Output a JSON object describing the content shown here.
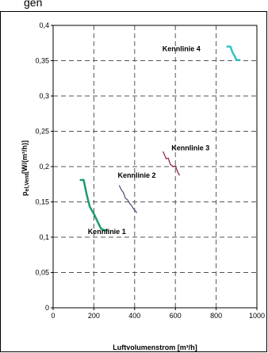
{
  "page": {
    "header_partial": "gen"
  },
  "chart_data": {
    "type": "line",
    "xlabel": "Luftvolumenstrom [m³/h]",
    "ylabel": "pel,Vent [W/(m³/h)]",
    "ylabel_main": "p",
    "ylabel_sub": "el,Vent",
    "ylabel_rest": "[W/(m³/h)]",
    "xlim": [
      0,
      1000
    ],
    "ylim": [
      0,
      0.4
    ],
    "x_ticks": [
      "0",
      "200",
      "400",
      "600",
      "800",
      "1000"
    ],
    "y_ticks": [
      "0",
      "0,05",
      "0,1",
      "0,15",
      "0,2",
      "0,25",
      "0,3",
      "0,35",
      "0,4"
    ],
    "grid": true,
    "series": [
      {
        "name": "Kennlinie 1",
        "color": "#1e9c6a",
        "x": [
          135,
          150,
          165,
          180,
          200,
          220,
          235,
          250,
          265
        ],
        "y": [
          0.181,
          0.181,
          0.16,
          0.143,
          0.133,
          0.121,
          0.112,
          0.11,
          0.11
        ]
      },
      {
        "name": "Kennlinie 2",
        "color": "#4a4a7a",
        "x": [
          325,
          335,
          345,
          355,
          365,
          375,
          385,
          395,
          410
        ],
        "y": [
          0.173,
          0.167,
          0.163,
          0.155,
          0.153,
          0.148,
          0.145,
          0.14,
          0.135
        ]
      },
      {
        "name": "Kennlinie 3",
        "color": "#8b1a3a",
        "x": [
          540,
          555,
          565,
          575,
          590,
          600,
          610,
          620
        ],
        "y": [
          0.221,
          0.211,
          0.212,
          0.203,
          0.2,
          0.201,
          0.193,
          0.188
        ]
      },
      {
        "name": "Kennlinie 4",
        "color": "#2ec4c4",
        "x": [
          855,
          870,
          880,
          890,
          900,
          915
        ],
        "y": [
          0.37,
          0.37,
          0.362,
          0.357,
          0.351,
          0.351
        ]
      }
    ]
  }
}
